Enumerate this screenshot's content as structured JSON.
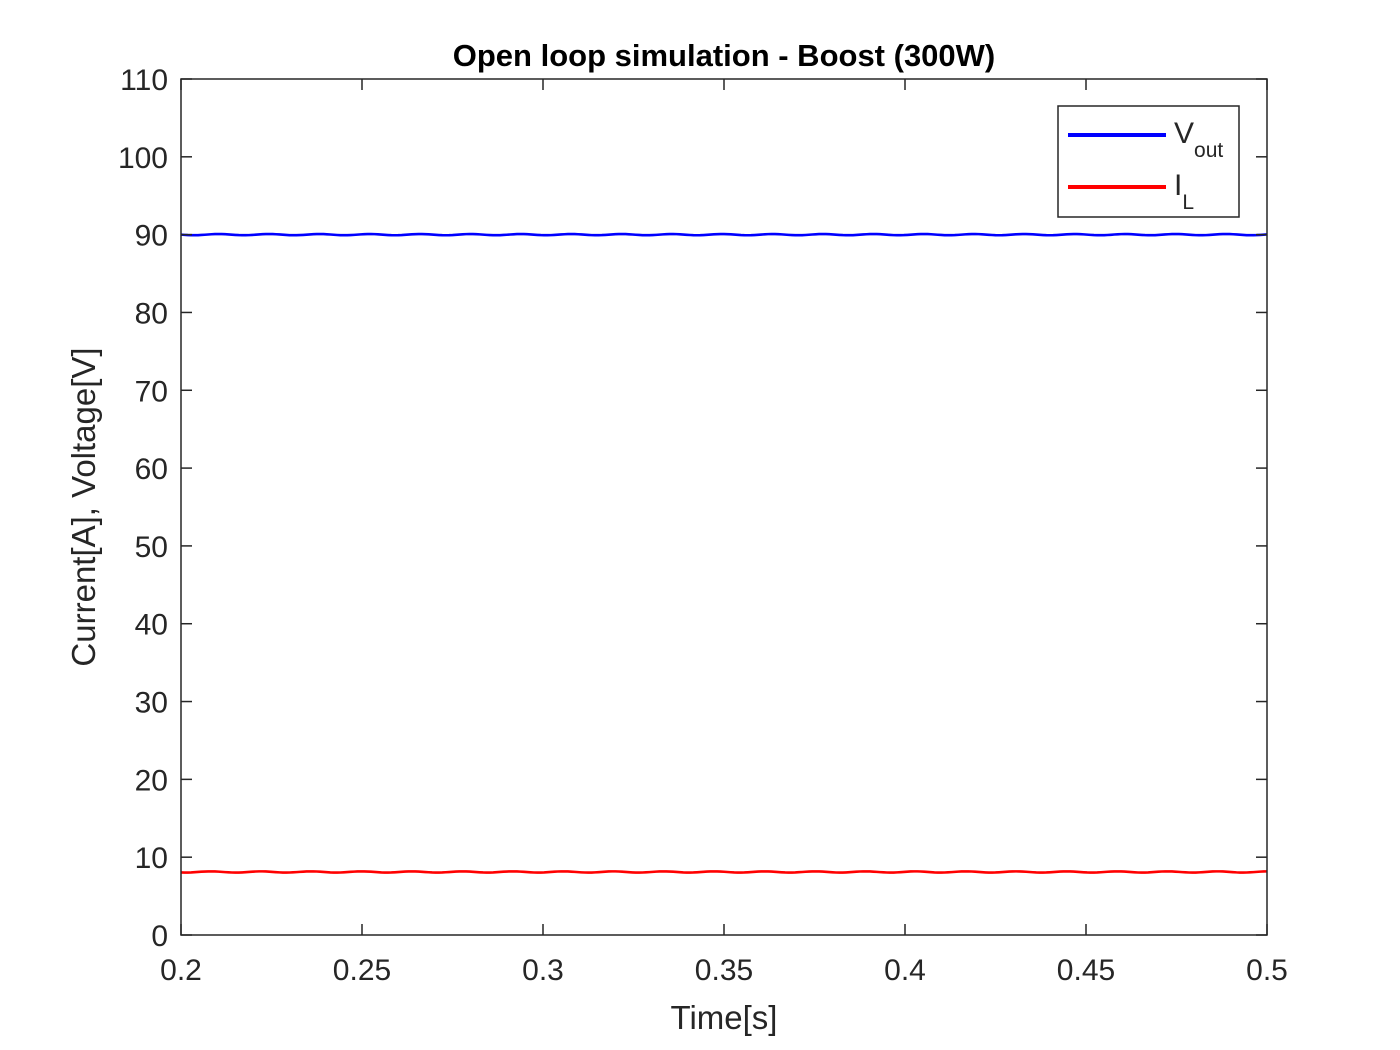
{
  "chart_data": {
    "type": "line",
    "title": "Open loop simulation - Boost (300W)",
    "xlabel": "Time[s]",
    "ylabel": "Current[A], Voltage[V]",
    "xlim": [
      0.2,
      0.5
    ],
    "ylim": [
      0,
      110
    ],
    "xticks": [
      "0.2",
      "0.25",
      "0.3",
      "0.35",
      "0.4",
      "0.45",
      "0.5"
    ],
    "yticks": [
      "0",
      "10",
      "20",
      "30",
      "40",
      "50",
      "60",
      "70",
      "80",
      "90",
      "100",
      "110"
    ],
    "grid": false,
    "legend_position": "top-right",
    "series": [
      {
        "name": "V",
        "name_subscript": "out",
        "color": "#0000ff",
        "x": [
          0.2,
          0.5
        ],
        "y": [
          90,
          90
        ]
      },
      {
        "name": "I",
        "name_subscript": "L",
        "color": "#ff0000",
        "x": [
          0.2,
          0.5
        ],
        "y": [
          8.1,
          8.1
        ]
      }
    ]
  }
}
